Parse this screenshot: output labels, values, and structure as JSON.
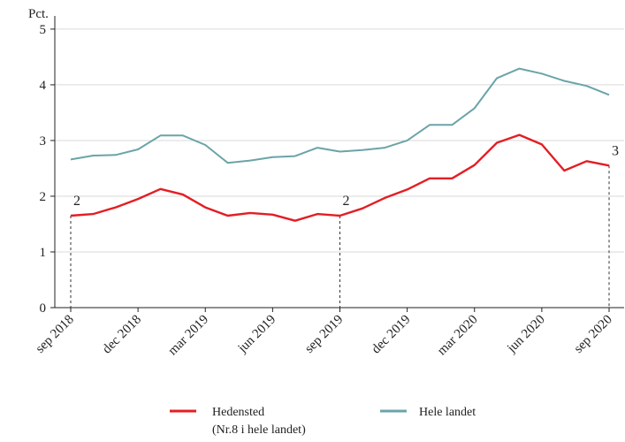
{
  "chart_data": {
    "type": "line",
    "unit_label": "Pct.",
    "ylim": [
      0,
      5.3
    ],
    "yticks": [
      "0",
      "1",
      "2",
      "3",
      "4",
      "5"
    ],
    "xtick_labels": [
      "sep 2018",
      "dec 2018",
      "mar 2019",
      "jun 2019",
      "sep 2019",
      "dec 2019",
      "mar 2020",
      "jun 2020",
      "sep 2020"
    ],
    "x": [
      "2018-09",
      "2018-10",
      "2018-11",
      "2018-12",
      "2019-01",
      "2019-02",
      "2019-03",
      "2019-04",
      "2019-05",
      "2019-06",
      "2019-07",
      "2019-08",
      "2019-09",
      "2019-10",
      "2019-11",
      "2019-12",
      "2020-01",
      "2020-02",
      "2020-03",
      "2020-04",
      "2020-05",
      "2020-06",
      "2020-07",
      "2020-08",
      "2020-09"
    ],
    "grid": "horizontal",
    "legend_position": "bottom",
    "series": [
      {
        "name": "Hedensted",
        "name_line2": "(Nr.8 i hele landet)",
        "color": "#e31e24",
        "values": [
          1.65,
          1.68,
          1.8,
          1.95,
          2.13,
          2.03,
          1.8,
          1.65,
          1.7,
          1.67,
          1.56,
          1.68,
          1.65,
          1.78,
          1.97,
          2.12,
          2.32,
          2.32,
          2.56,
          2.96,
          3.1,
          2.93,
          2.46,
          2.63,
          2.55
        ]
      },
      {
        "name": "Hele landet",
        "color": "#6aa4a8",
        "values": [
          2.66,
          2.73,
          2.74,
          2.84,
          3.09,
          3.09,
          2.92,
          2.6,
          2.64,
          2.7,
          2.72,
          2.87,
          2.8,
          2.83,
          2.87,
          3.0,
          3.28,
          3.28,
          3.58,
          4.12,
          4.29,
          4.2,
          4.07,
          3.98,
          3.82
        ]
      }
    ],
    "annotations": [
      {
        "text": "2",
        "series": "Hedensted",
        "x": "2018-09"
      },
      {
        "text": "2",
        "series": "Hedensted",
        "x": "2019-09"
      },
      {
        "text": "3",
        "series": "Hedensted",
        "x": "2020-09"
      }
    ]
  }
}
